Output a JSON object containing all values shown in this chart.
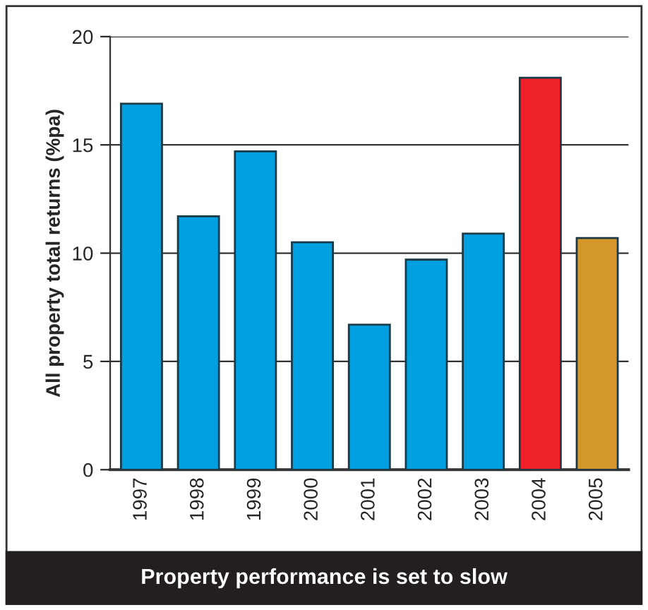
{
  "chart_data": {
    "type": "bar",
    "title": "Property performance is set to slow",
    "ylabel": "All property total returns (%pa)",
    "categories": [
      "1997",
      "1998",
      "1999",
      "2000",
      "2001",
      "2002",
      "2003",
      "2004",
      "2005"
    ],
    "values": [
      16.9,
      11.7,
      14.7,
      10.5,
      6.7,
      9.7,
      10.9,
      18.1,
      10.7
    ],
    "colors": [
      "#00a0e0",
      "#00a0e0",
      "#00a0e0",
      "#00a0e0",
      "#00a0e0",
      "#00a0e0",
      "#00a0e0",
      "#ee2228",
      "#d4972c"
    ],
    "ylim": [
      0,
      20
    ],
    "yticks": [
      0,
      5,
      10,
      15,
      20
    ],
    "grid": "y"
  }
}
